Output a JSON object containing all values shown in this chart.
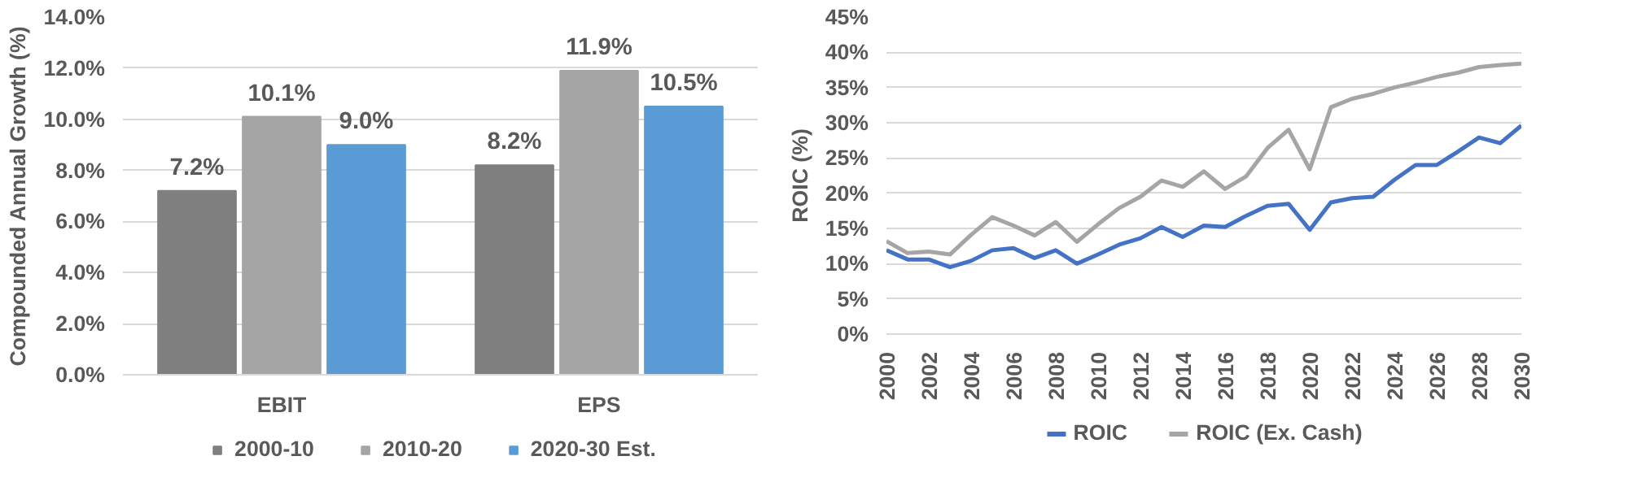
{
  "chart_data": [
    {
      "type": "bar",
      "ylabel": "Compounded Annual Growth (%)",
      "categories": [
        "EBIT",
        "EPS"
      ],
      "series": [
        {
          "name": "2000-10",
          "color": "#7f7f7f",
          "values": [
            7.2,
            8.2
          ],
          "value_labels": [
            "7.2%",
            "8.2%"
          ]
        },
        {
          "name": "2010-20",
          "color": "#a5a5a5",
          "values": [
            10.1,
            11.9
          ],
          "value_labels": [
            "10.1%",
            "11.9%"
          ]
        },
        {
          "name": "2020-30 Est.",
          "color": "#5b9bd5",
          "values": [
            9.0,
            10.5
          ],
          "value_labels": [
            "9.0%",
            "10.5%"
          ]
        }
      ],
      "ylim": [
        0,
        14
      ],
      "yticks": [
        {
          "value": 0,
          "label": "0.0%"
        },
        {
          "value": 2,
          "label": "2.0%"
        },
        {
          "value": 4,
          "label": "4.0%"
        },
        {
          "value": 6,
          "label": "6.0%"
        },
        {
          "value": 8,
          "label": "8.0%"
        },
        {
          "value": 10,
          "label": "10.0%"
        },
        {
          "value": 12,
          "label": "12.0%"
        },
        {
          "value": 14,
          "label": "14.0%"
        }
      ],
      "grid": "y",
      "legend": "bottom"
    },
    {
      "type": "line",
      "ylabel": "ROIC (%)",
      "x": [
        2000,
        2001,
        2002,
        2003,
        2004,
        2005,
        2006,
        2007,
        2008,
        2009,
        2010,
        2011,
        2012,
        2013,
        2014,
        2015,
        2016,
        2017,
        2018,
        2019,
        2020,
        2021,
        2022,
        2023,
        2024,
        2025,
        2026,
        2027,
        2028,
        2029,
        2030
      ],
      "series": [
        {
          "name": "ROIC",
          "color": "#4472c4",
          "values": [
            11.9,
            10.6,
            10.6,
            9.5,
            10.4,
            11.9,
            12.2,
            10.8,
            11.9,
            10.0,
            11.3,
            12.7,
            13.6,
            15.2,
            13.8,
            15.4,
            15.2,
            16.8,
            18.2,
            18.5,
            14.8,
            18.7,
            19.3,
            19.5,
            21.9,
            24.0,
            24.0,
            25.9,
            27.9,
            27.1,
            29.6
          ]
        },
        {
          "name": "ROIC (Ex. Cash)",
          "color": "#a5a5a5",
          "values": [
            13.2,
            11.5,
            11.7,
            11.3,
            14.1,
            16.6,
            15.4,
            14.0,
            15.9,
            13.1,
            15.6,
            17.9,
            19.5,
            21.8,
            20.9,
            23.1,
            20.6,
            22.4,
            26.4,
            29.0,
            23.4,
            32.2,
            33.4,
            34.1,
            35.0,
            35.7,
            36.5,
            37.1,
            37.9,
            38.2,
            38.4
          ]
        }
      ],
      "xlim": [
        2000,
        2030
      ],
      "xticks": [
        2000,
        2002,
        2004,
        2006,
        2008,
        2010,
        2012,
        2014,
        2016,
        2018,
        2020,
        2022,
        2024,
        2026,
        2028,
        2030
      ],
      "ylim": [
        0,
        45
      ],
      "yticks": [
        {
          "value": 0,
          "label": "0%"
        },
        {
          "value": 5,
          "label": "5%"
        },
        {
          "value": 10,
          "label": "10%"
        },
        {
          "value": 15,
          "label": "15%"
        },
        {
          "value": 20,
          "label": "20%"
        },
        {
          "value": 25,
          "label": "25%"
        },
        {
          "value": 30,
          "label": "30%"
        },
        {
          "value": 35,
          "label": "35%"
        },
        {
          "value": 40,
          "label": "40%"
        },
        {
          "value": 45,
          "label": "45%"
        }
      ],
      "grid": "y",
      "legend": "bottom",
      "line_style": "solid",
      "marker": "none"
    }
  ]
}
